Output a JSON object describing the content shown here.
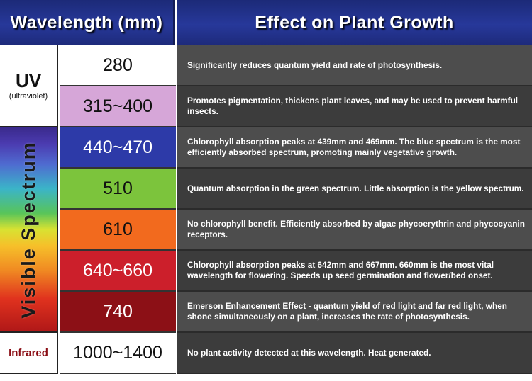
{
  "headers": {
    "wavelength": "Wavelength (mm)",
    "effect": "Effect on Plant Growth"
  },
  "groups": {
    "uv": {
      "label": "UV",
      "sublabel": "(ultraviolet)"
    },
    "visible": {
      "label": "Visible Spectrum"
    },
    "infrared": {
      "label": "Infrared"
    }
  },
  "rows": [
    {
      "wavelength": "280",
      "color": "#ffffff",
      "effect": "Significantly reduces quantum yield and rate of photosynthesis."
    },
    {
      "wavelength": "315~400",
      "color": "#d6a6d8",
      "effect": "Promotes pigmentation, thickens plant leaves, and may be used to prevent harmful insects."
    },
    {
      "wavelength": "440~470",
      "color": "#2d3aa8",
      "effect": "Chlorophyll absorption peaks at 439mm and 469mm. The blue spectrum is the most efficiently absorbed spectrum, promoting mainly vegetative growth."
    },
    {
      "wavelength": "510",
      "color": "#7cc43c",
      "effect": "Quantum absorption in the green spectrum. Little absorption is the yellow spectrum."
    },
    {
      "wavelength": "610",
      "color": "#f26a1e",
      "effect": "No chlorophyll benefit. Efficiently absorbed by algae phycoerythrin and phycocyanin receptors."
    },
    {
      "wavelength": "640~660",
      "color": "#cc1f2b",
      "effect": "Chlorophyll absorption peaks at 642mm and 667mm. 660mm is the most vital wavelength for flowering. Speeds up seed germination and flower/bed onset."
    },
    {
      "wavelength": "740",
      "color": "#8c1016",
      "effect": "Emerson Enhancement Effect - quantum yield of red light and far red light, when shone simultaneously on a plant, increases the rate of photosynthesis."
    },
    {
      "wavelength": "1000~1400",
      "color": "#ffffff",
      "effect": "No plant activity detected at this wavelength. Heat generated."
    }
  ]
}
